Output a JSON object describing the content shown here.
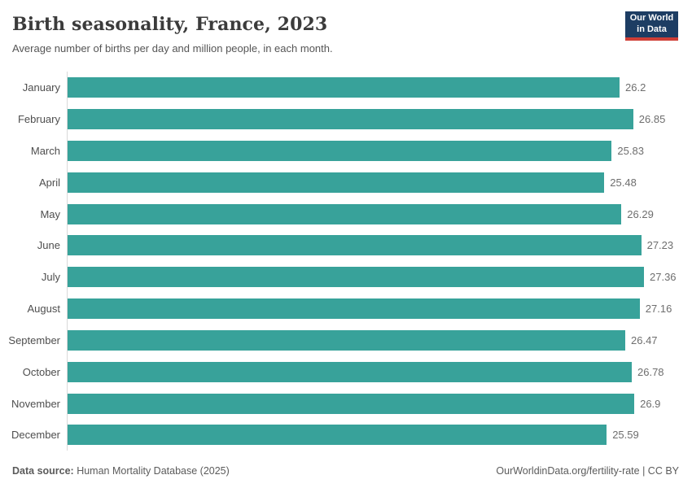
{
  "header": {
    "title": "Birth seasonality, France, 2023",
    "subtitle": "Average number of births per day and million people, in each month.",
    "logo": {
      "line1": "Our World",
      "line2": "in Data"
    }
  },
  "chart_data": {
    "type": "bar",
    "orientation": "horizontal",
    "title": "Birth seasonality, France, 2023",
    "subtitle": "Average number of births per day and million people, in each month.",
    "categories": [
      "January",
      "February",
      "March",
      "April",
      "May",
      "June",
      "July",
      "August",
      "September",
      "October",
      "November",
      "December"
    ],
    "values": [
      26.2,
      26.85,
      25.83,
      25.48,
      26.29,
      27.23,
      27.36,
      27.16,
      26.47,
      26.78,
      26.9,
      25.59
    ],
    "value_labels": [
      "26.2",
      "26.85",
      "25.83",
      "25.48",
      "26.29",
      "27.23",
      "27.36",
      "27.16",
      "26.47",
      "26.78",
      "26.9",
      "25.59"
    ],
    "xlabel": "",
    "ylabel": "",
    "xlim": [
      0,
      27.36
    ],
    "grid": false,
    "legend": false,
    "bar_color": "#38a29a",
    "axis_line_color": "#d9d9d9"
  },
  "footer": {
    "source_label": "Data source:",
    "source_text": " Human Mortality Database (2025)",
    "right_text": "OurWorldinData.org/fertility-rate | CC BY"
  },
  "colors": {
    "bar": "#38a29a",
    "title": "#3b3b3b",
    "subtitle": "#555555",
    "category_label": "#4e4e4e",
    "value_label": "#6e6e6e",
    "footer_text": "#5b5b5b",
    "logo_background": "#1d3d63",
    "logo_stripe": "#cf3e36"
  }
}
